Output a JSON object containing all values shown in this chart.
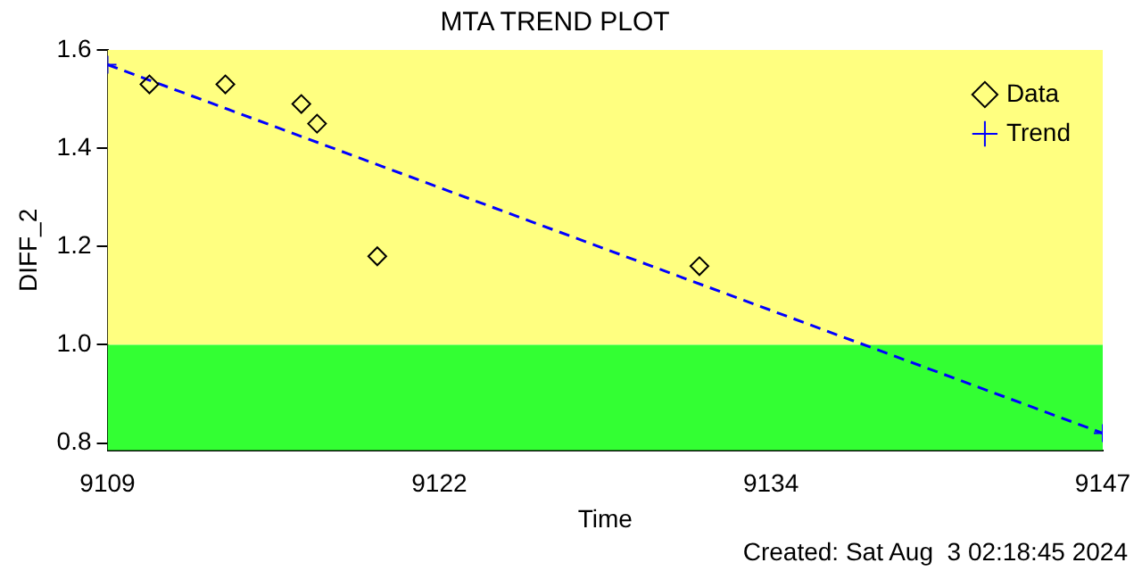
{
  "chart_data": {
    "type": "scatter",
    "title": "MTA TREND PLOT",
    "xlabel": "Time",
    "ylabel": "DIFF_2",
    "xlim": [
      9109,
      9147
    ],
    "ylim": [
      0.785,
      1.6
    ],
    "xticks": [
      9109,
      {
        "value": 9121.67,
        "label": "9122"
      },
      {
        "value": 9134.33,
        "label": "9134"
      },
      9147
    ],
    "yticks": [
      {
        "value": 0.8,
        "label": "0.8"
      },
      {
        "value": 1.0,
        "label": "1.0"
      },
      {
        "value": 1.2,
        "label": "1.2"
      },
      {
        "value": 1.4,
        "label": "1.4"
      },
      {
        "value": 1.6,
        "label": "1.6"
      }
    ],
    "series": [
      {
        "name": "Data",
        "type": "scatter",
        "color": "#000000",
        "marker": "diamond",
        "x": [
          9110.6,
          9113.5,
          9116.4,
          9117.0,
          9119.3,
          9131.6
        ],
        "values": [
          1.53,
          1.53,
          1.49,
          1.45,
          1.18,
          1.16
        ]
      },
      {
        "name": "Trend",
        "type": "line",
        "color": "#0000ff",
        "marker": "cross",
        "line_style": "dashed",
        "x": [
          9109,
          9147
        ],
        "values": [
          1.57,
          0.82
        ]
      }
    ],
    "bands": [
      {
        "axis": "y",
        "from": 1.0,
        "to": 1.6,
        "color": "#ffff80"
      },
      {
        "axis": "y",
        "from": 0.785,
        "to": 1.0,
        "color": "#33ff33"
      }
    ],
    "legend": "top right",
    "grid": false,
    "annotations": [
      "Created: Sat Aug  3 02:18:45 2024"
    ]
  }
}
